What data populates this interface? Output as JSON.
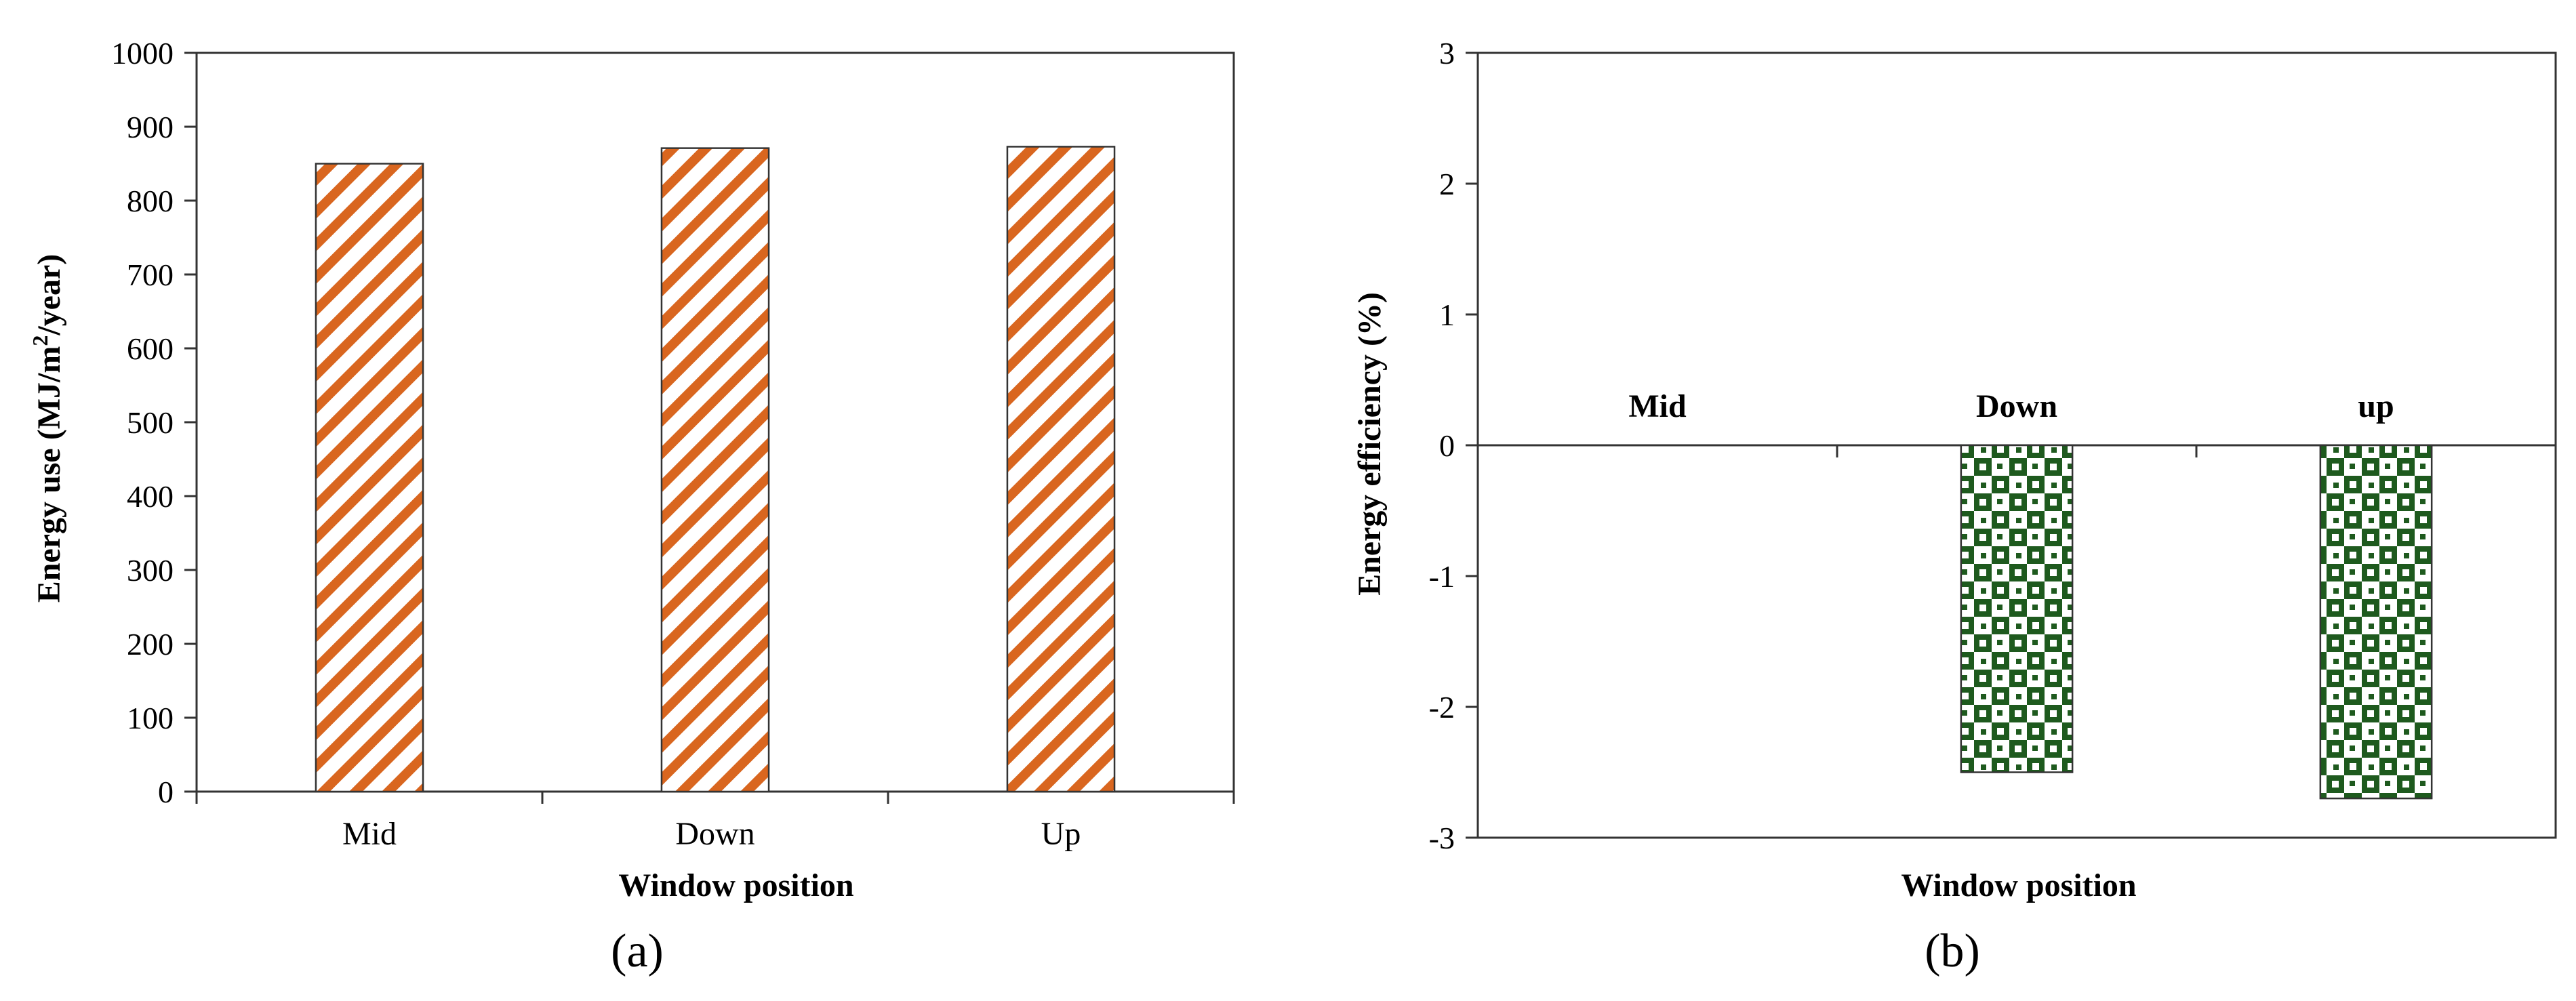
{
  "chart_data": [
    {
      "type": "bar",
      "panel_label": "(a)",
      "xlabel": "Window position",
      "ylabel_parts": [
        "Energy use (MJ/m",
        "2",
        "/year)"
      ],
      "categories": [
        "Mid",
        "Down",
        "Up"
      ],
      "values": [
        850,
        871,
        873
      ],
      "ylim": [
        0,
        1000
      ],
      "yticks": [
        0,
        100,
        200,
        300,
        400,
        500,
        600,
        700,
        800,
        900,
        1000
      ],
      "grid": false,
      "fill": "diagonal-stripes",
      "colors": {
        "stripe": "#d9661f",
        "background": "#ffffff",
        "frame": "#333333"
      }
    },
    {
      "type": "bar",
      "panel_label": "(b)",
      "xlabel": "Window position",
      "ylabel": "Energy efficiency (%)",
      "categories": [
        "Mid",
        "Down",
        "up"
      ],
      "values": [
        0,
        -2.5,
        -2.7
      ],
      "ylim": [
        -3,
        3
      ],
      "yticks": [
        -3,
        -2,
        -1,
        0,
        1,
        2,
        3
      ],
      "category_labels_position": "above-zero-line",
      "grid": false,
      "fill": "checkered",
      "colors": {
        "check": "#1e5a1e",
        "background": "#ffffff",
        "frame": "#333333"
      }
    }
  ]
}
